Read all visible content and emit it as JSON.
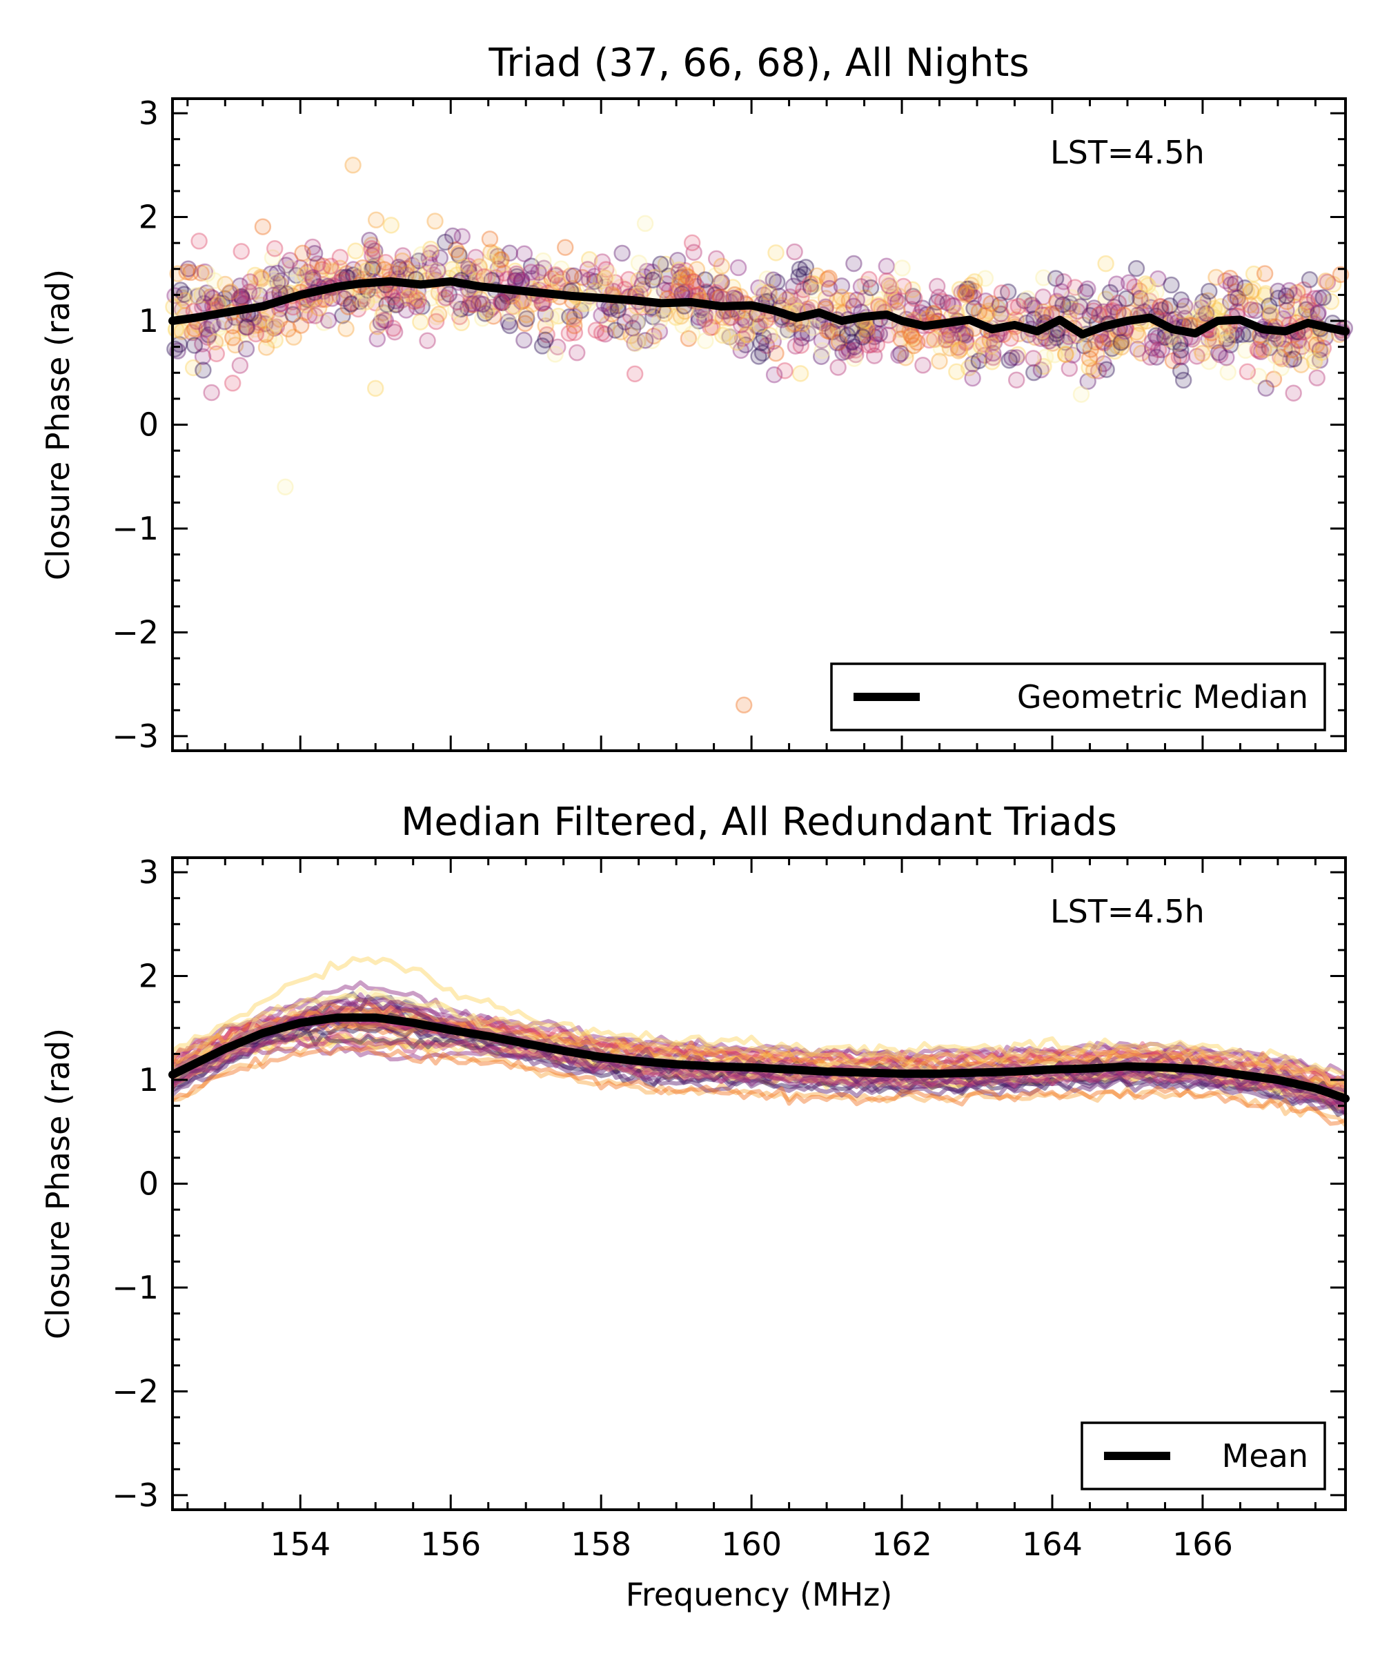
{
  "chart_data": [
    {
      "type": "scatter",
      "title": "Triad (37, 66, 68), All Nights",
      "xlabel": "",
      "ylabel": "Closure Phase (rad)",
      "annotation": "LST=4.5h",
      "xlim": [
        152.3,
        167.9
      ],
      "ylim": [
        -3.14,
        3.14
      ],
      "x_ticks": [
        154,
        156,
        158,
        160,
        162,
        164,
        166
      ],
      "x_ticks_labeled": false,
      "y_ticks": [
        3,
        2,
        1,
        0,
        -1,
        -2,
        -3
      ],
      "y_tick_labels": [
        "3",
        "2",
        "1",
        "0",
        "−1",
        "−2",
        "−3"
      ],
      "grid": false,
      "legend_position": "lower-right",
      "series_colors": [
        "#2b1055",
        "#5c1a6e",
        "#8c2981",
        "#b73779",
        "#de4968",
        "#f1711f",
        "#f8a53b",
        "#fcd25a",
        "#fbeea0"
      ],
      "series": [
        {
          "name": "Geometric Median",
          "type": "line",
          "color": "#000000",
          "x": [
            152.3,
            152.6,
            153.0,
            153.5,
            154.0,
            154.5,
            154.8,
            155.2,
            155.6,
            156.0,
            156.4,
            156.8,
            157.2,
            157.6,
            158.0,
            158.4,
            158.8,
            159.2,
            159.6,
            160.0,
            160.3,
            160.6,
            160.9,
            161.2,
            161.5,
            161.8,
            162.0,
            162.3,
            162.6,
            162.9,
            163.2,
            163.5,
            163.8,
            164.1,
            164.4,
            164.7,
            165.0,
            165.3,
            165.6,
            165.9,
            166.2,
            166.5,
            166.8,
            167.1,
            167.4,
            167.7,
            167.9
          ],
          "values": [
            1.0,
            1.03,
            1.08,
            1.14,
            1.25,
            1.33,
            1.36,
            1.38,
            1.35,
            1.38,
            1.33,
            1.3,
            1.27,
            1.24,
            1.22,
            1.2,
            1.17,
            1.18,
            1.14,
            1.15,
            1.1,
            1.03,
            1.08,
            1.0,
            1.04,
            1.06,
            1.0,
            0.95,
            0.98,
            1.01,
            0.92,
            0.96,
            0.9,
            1.01,
            0.87,
            0.95,
            1.0,
            1.03,
            0.92,
            0.88,
            1.0,
            1.01,
            0.92,
            0.9,
            0.98,
            0.93,
            0.9
          ]
        }
      ],
      "scatter_band": {
        "description_free": true,
        "center_follows": "Geometric Median",
        "spread": 0.3,
        "outliers": [
          {
            "x": 155.0,
            "y": 0.35
          },
          {
            "x": 153.8,
            "y": -0.6
          },
          {
            "x": 159.9,
            "y": -2.7
          },
          {
            "x": 154.7,
            "y": 2.5
          },
          {
            "x": 153.1,
            "y": 0.4
          }
        ]
      }
    },
    {
      "type": "line",
      "title": "Median Filtered, All Redundant Triads",
      "xlabel": "Frequency (MHz)",
      "ylabel": "Closure Phase (rad)",
      "annotation": "LST=4.5h",
      "xlim": [
        152.3,
        167.9
      ],
      "ylim": [
        -3.14,
        3.14
      ],
      "x_ticks": [
        154,
        156,
        158,
        160,
        162,
        164,
        166
      ],
      "x_tick_labels": [
        "154",
        "156",
        "158",
        "160",
        "162",
        "164",
        "166"
      ],
      "y_ticks": [
        3,
        2,
        1,
        0,
        -1,
        -2,
        -3
      ],
      "y_tick_labels": [
        "3",
        "2",
        "1",
        "0",
        "−1",
        "−2",
        "−3"
      ],
      "grid": false,
      "legend_position": "lower-right",
      "series_colors": [
        "#2b1055",
        "#5c1a6e",
        "#8c2981",
        "#b73779",
        "#de4968",
        "#f1711f",
        "#f8a53b",
        "#fcd25a",
        "#fbeea0"
      ],
      "series": [
        {
          "name": "Mean",
          "color": "#000000",
          "x": [
            152.3,
            153.0,
            153.5,
            154.0,
            154.5,
            155.0,
            155.5,
            156.0,
            156.5,
            157.0,
            157.5,
            158.0,
            158.5,
            159.0,
            159.5,
            160.0,
            160.5,
            161.0,
            161.5,
            162.0,
            162.5,
            163.0,
            163.5,
            164.0,
            164.5,
            165.0,
            165.5,
            166.0,
            166.5,
            167.0,
            167.5,
            167.9
          ],
          "values": [
            1.05,
            1.3,
            1.45,
            1.55,
            1.6,
            1.6,
            1.55,
            1.48,
            1.42,
            1.35,
            1.28,
            1.22,
            1.18,
            1.15,
            1.13,
            1.12,
            1.1,
            1.08,
            1.07,
            1.06,
            1.06,
            1.07,
            1.08,
            1.1,
            1.11,
            1.13,
            1.12,
            1.1,
            1.05,
            1.0,
            0.92,
            0.82
          ]
        }
      ]
    }
  ]
}
